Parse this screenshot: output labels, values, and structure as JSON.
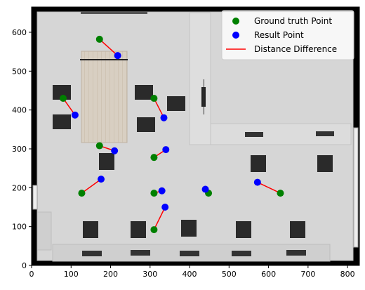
{
  "chart_data": {
    "type": "scatter",
    "title": "",
    "xlabel": "",
    "ylabel": "",
    "xlim": [
      0,
      830
    ],
    "ylim": [
      0,
      665
    ],
    "grid": false,
    "legend_placement": "top-right",
    "background": "floor-plan-image",
    "xticks": [
      0,
      100,
      200,
      300,
      400,
      500,
      600,
      700,
      800
    ],
    "yticks": [
      0,
      100,
      200,
      300,
      400,
      500,
      600
    ],
    "series": [
      {
        "name": "Ground truth Point",
        "color": "#008000",
        "points": [
          [
            172,
            582
          ],
          [
            80,
            430
          ],
          [
            310,
            430
          ],
          [
            172,
            308
          ],
          [
            310,
            278
          ],
          [
            127,
            186
          ],
          [
            310,
            186
          ],
          [
            448,
            186
          ],
          [
            630,
            186
          ],
          [
            310,
            92
          ]
        ]
      },
      {
        "name": "Result Point",
        "color": "#0000ff",
        "points": [
          [
            218,
            540
          ],
          [
            110,
            387
          ],
          [
            335,
            380
          ],
          [
            210,
            295
          ],
          [
            340,
            298
          ],
          [
            176,
            222
          ],
          [
            330,
            192
          ],
          [
            440,
            196
          ],
          [
            572,
            214
          ],
          [
            338,
            150
          ]
        ]
      }
    ],
    "lines": {
      "name": "Distance Difference",
      "color": "#ff0000"
    }
  }
}
